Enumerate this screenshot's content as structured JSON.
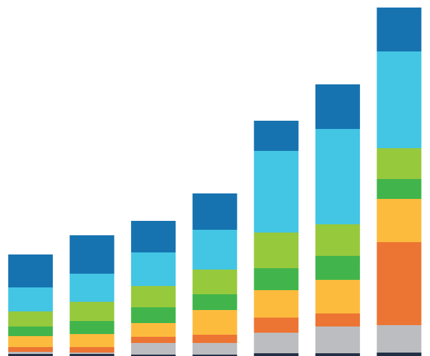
{
  "chart_data": {
    "type": "stacked-bar",
    "categories": [
      null,
      null,
      null,
      null,
      null,
      null,
      null
    ],
    "ylim": [
      0,
      519
    ],
    "series": [
      {
        "color": "#223046",
        "values": [
          3,
          3,
          2,
          2,
          4,
          4,
          5
        ]
      },
      {
        "color": "#bcbdc0",
        "values": [
          3,
          2,
          17,
          17,
          30,
          39,
          40
        ]
      },
      {
        "color": "#ec7533",
        "values": [
          7,
          8,
          9,
          12,
          22,
          19,
          121
        ]
      },
      {
        "color": "#fdbb3e",
        "values": [
          16,
          19,
          20,
          36,
          40,
          49,
          63
        ]
      },
      {
        "color": "#41b54b",
        "values": [
          14,
          19,
          23,
          23,
          32,
          35,
          29
        ]
      },
      {
        "color": "#97c93c",
        "values": [
          22,
          28,
          31,
          36,
          52,
          46,
          45
        ]
      },
      {
        "color": "#43c5e4",
        "values": [
          35,
          41,
          49,
          58,
          119,
          139,
          141
        ]
      },
      {
        "color": "#1673b0",
        "values": [
          48,
          56,
          46,
          53,
          44,
          65,
          64
        ]
      }
    ]
  }
}
